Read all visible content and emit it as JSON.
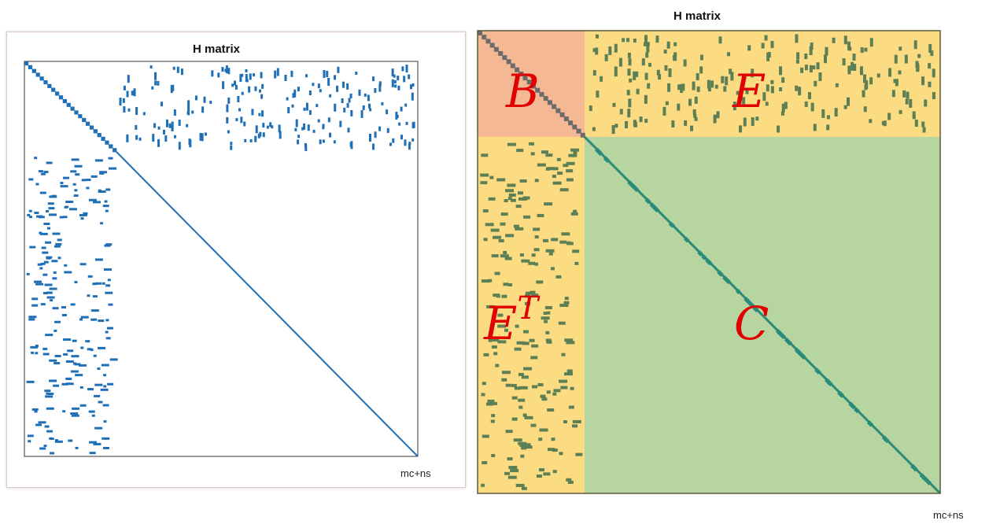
{
  "left": {
    "title": "H matrix",
    "xlabel": "mc+ns",
    "marker_color": "#1f6fb6"
  },
  "right": {
    "title": "H matrix",
    "xlabel": "mc+ns",
    "marker_color": "#5d7f55",
    "diagonal_color": "#2b8a78",
    "blocks": [
      {
        "name": "B",
        "label": "B",
        "color": "#f4b894"
      },
      {
        "name": "E",
        "label": "E",
        "color": "#fbdc82"
      },
      {
        "name": "E-transpose",
        "label": "E",
        "superscript": "T",
        "color": "#fbdc82"
      },
      {
        "name": "C",
        "label": "C",
        "color": "#b6d5a0"
      }
    ]
  }
}
